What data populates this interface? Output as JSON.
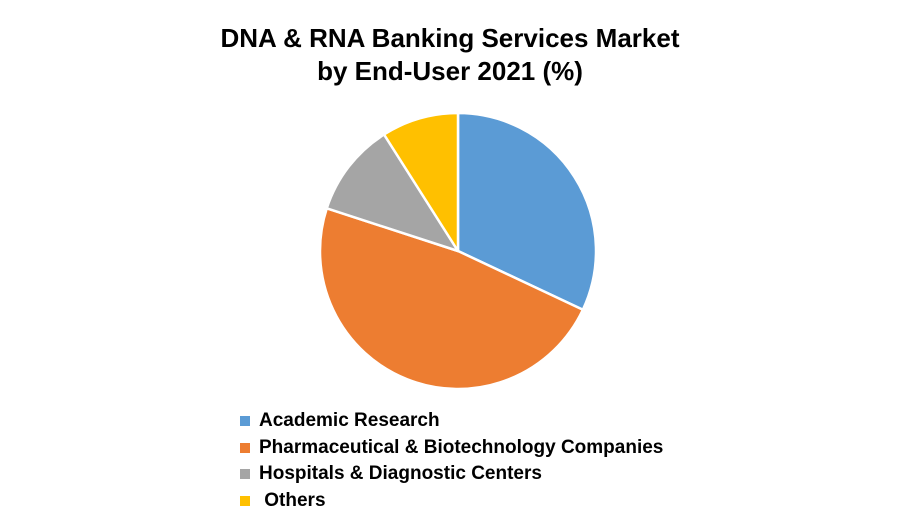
{
  "chart_data": {
    "type": "pie",
    "title": "DNA & RNA Banking Services Market by End-User 2021 (%)",
    "title_lines": [
      "DNA & RNA Banking Services Market",
      "by End-User 2021 (%)"
    ],
    "categories": [
      "Academic Research",
      "Pharmaceutical & Biotechnology Companies",
      "Hospitals & Diagnostic Centers",
      "Others"
    ],
    "values": [
      32,
      48,
      11,
      9
    ],
    "colors": [
      "#5B9BD5",
      "#ED7D31",
      "#A5A5A5",
      "#FFC000"
    ],
    "start_angle": "12 o'clock, clockwise",
    "legend_position": "bottom",
    "data_labels": false
  },
  "legend": [
    {
      "label": "Academic Research",
      "color": "#5B9BD5"
    },
    {
      "label": "Pharmaceutical & Biotechnology Companies",
      "color": "#ED7D31"
    },
    {
      "label": "Hospitals & Diagnostic Centers",
      "color": "#A5A5A5"
    },
    {
      "label": " Others",
      "color": "#FFC000"
    }
  ]
}
